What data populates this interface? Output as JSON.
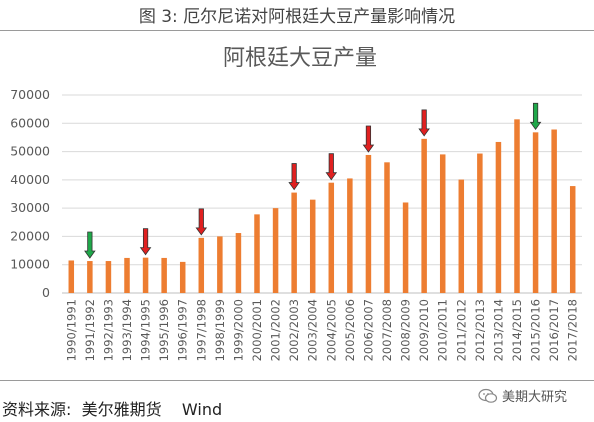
{
  "caption": "图 3:  厄尔尼诺对阿根廷大豆产量影响情况",
  "source": "资料来源:  美尔雅期货    Wind",
  "watermark": "美期大研究",
  "colors": {
    "bar": "#ED7D31",
    "grid": "#d9d9d9",
    "red_arrow": "#E02020",
    "green_arrow": "#1FA84A"
  },
  "chart_data": {
    "type": "bar",
    "title": "阿根廷大豆产量",
    "ylim": [
      0,
      70000
    ],
    "yticks": [
      0,
      10000,
      20000,
      30000,
      40000,
      50000,
      60000,
      70000
    ],
    "grid": true,
    "categories": [
      "1990/1991",
      "1991/1992",
      "1992/1993",
      "1993/1994",
      "1994/1995",
      "1995/1996",
      "1996/1997",
      "1997/1998",
      "1998/1999",
      "1999/2000",
      "2000/2001",
      "2001/2002",
      "2002/2003",
      "2003/2004",
      "2004/2005",
      "2005/2006",
      "2006/2007",
      "2007/2008",
      "2008/2009",
      "2009/2010",
      "2010/2011",
      "2011/2012",
      "2012/2013",
      "2013/2014",
      "2014/2015",
      "2015/2016",
      "2016/2017",
      "2017/2018"
    ],
    "values": [
      11500,
      11300,
      11300,
      12400,
      12500,
      12400,
      11000,
      19500,
      20000,
      21200,
      27800,
      30000,
      35500,
      33000,
      39000,
      40500,
      48800,
      46200,
      32000,
      54500,
      49000,
      40100,
      49300,
      53400,
      61400,
      56800,
      57800,
      37800
    ],
    "annotations": [
      {
        "category": "1991/1992",
        "arrow": "down",
        "color": "green"
      },
      {
        "category": "1994/1995",
        "arrow": "down",
        "color": "red"
      },
      {
        "category": "1997/1998",
        "arrow": "down",
        "color": "red"
      },
      {
        "category": "2002/2003",
        "arrow": "down",
        "color": "red"
      },
      {
        "category": "2004/2005",
        "arrow": "down",
        "color": "red"
      },
      {
        "category": "2006/2007",
        "arrow": "down",
        "color": "red"
      },
      {
        "category": "2009/2010",
        "arrow": "down",
        "color": "red"
      },
      {
        "category": "2015/2016",
        "arrow": "down",
        "color": "green"
      }
    ]
  }
}
